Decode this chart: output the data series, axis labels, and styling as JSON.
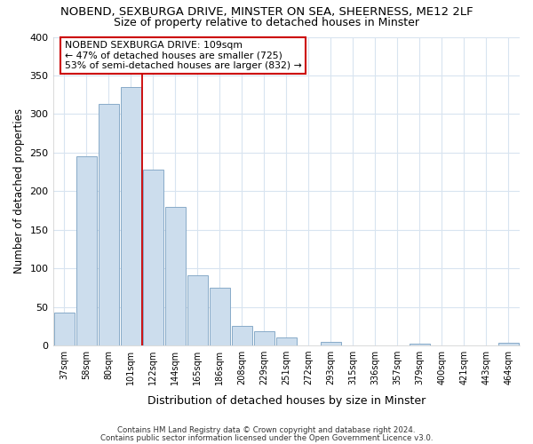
{
  "title": "NOBEND, SEXBURGA DRIVE, MINSTER ON SEA, SHEERNESS, ME12 2LF",
  "subtitle": "Size of property relative to detached houses in Minster",
  "xlabel": "Distribution of detached houses by size in Minster",
  "ylabel": "Number of detached properties",
  "footer_line1": "Contains HM Land Registry data © Crown copyright and database right 2024.",
  "footer_line2": "Contains public sector information licensed under the Open Government Licence v3.0.",
  "bar_labels": [
    "37sqm",
    "58sqm",
    "80sqm",
    "101sqm",
    "122sqm",
    "144sqm",
    "165sqm",
    "186sqm",
    "208sqm",
    "229sqm",
    "251sqm",
    "272sqm",
    "293sqm",
    "315sqm",
    "336sqm",
    "357sqm",
    "379sqm",
    "400sqm",
    "421sqm",
    "443sqm",
    "464sqm"
  ],
  "bar_values": [
    43,
    245,
    313,
    335,
    228,
    180,
    91,
    75,
    25,
    18,
    10,
    0,
    5,
    0,
    0,
    0,
    2,
    0,
    0,
    0,
    3
  ],
  "bar_color": "#ccdded",
  "bar_edge_color": "#88aac8",
  "reference_line_x": 3.5,
  "annotation_title": "NOBEND SEXBURGA DRIVE: 109sqm",
  "annotation_line1": "← 47% of detached houses are smaller (725)",
  "annotation_line2": "53% of semi-detached houses are larger (832) →",
  "annotation_box_edge": "#cc0000",
  "ylim": [
    0,
    400
  ],
  "yticks": [
    0,
    50,
    100,
    150,
    200,
    250,
    300,
    350,
    400
  ],
  "background_color": "#ffffff",
  "plot_background": "#ffffff",
  "grid_color": "#d8e4f0",
  "title_fontsize": 9.5,
  "subtitle_fontsize": 9
}
